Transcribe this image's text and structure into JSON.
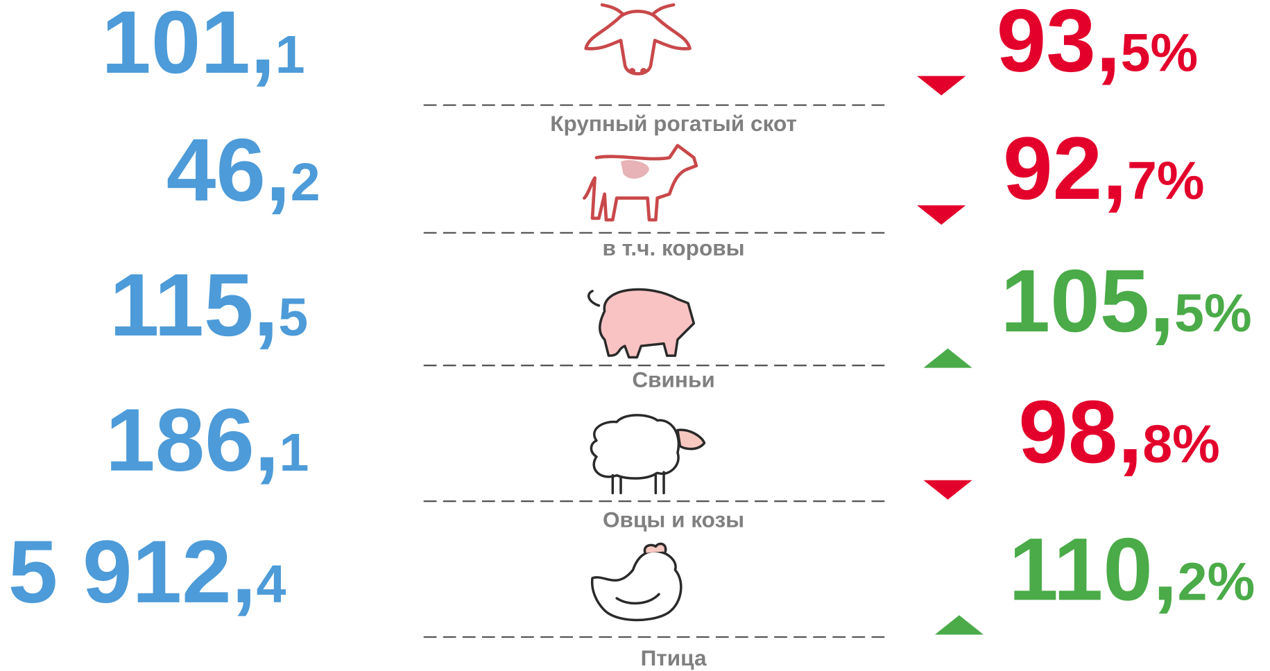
{
  "settings": {
    "up_color": "#4aab48",
    "down_color": "#e3002b",
    "value_color": "#4d9bd8",
    "label_color": "#7f7f7f"
  },
  "rows": [
    {
      "label": "Крупный рогатый скот",
      "value": {
        "whole": "101,",
        "fraction": "1"
      },
      "percent": {
        "whole": "93,",
        "fraction": "5%"
      },
      "direction": "down"
    },
    {
      "label": "в т.ч. коровы",
      "value": {
        "whole": "46,",
        "fraction": "2"
      },
      "percent": {
        "whole": "92,",
        "fraction": "7%"
      },
      "direction": "down"
    },
    {
      "label": "Свиньи",
      "value": {
        "whole": "115,",
        "fraction": "5"
      },
      "percent": {
        "whole": "105,",
        "fraction": "5%"
      },
      "direction": "up"
    },
    {
      "label": "Овцы и козы",
      "value": {
        "whole": "186,",
        "fraction": "1"
      },
      "percent": {
        "whole": "98,",
        "fraction": "8%"
      },
      "direction": "down"
    },
    {
      "label": "Птица",
      "value": {
        "whole": "5 912,",
        "fraction": "4"
      },
      "percent": {
        "whole": "110,",
        "fraction": "2%"
      },
      "direction": "up"
    }
  ]
}
